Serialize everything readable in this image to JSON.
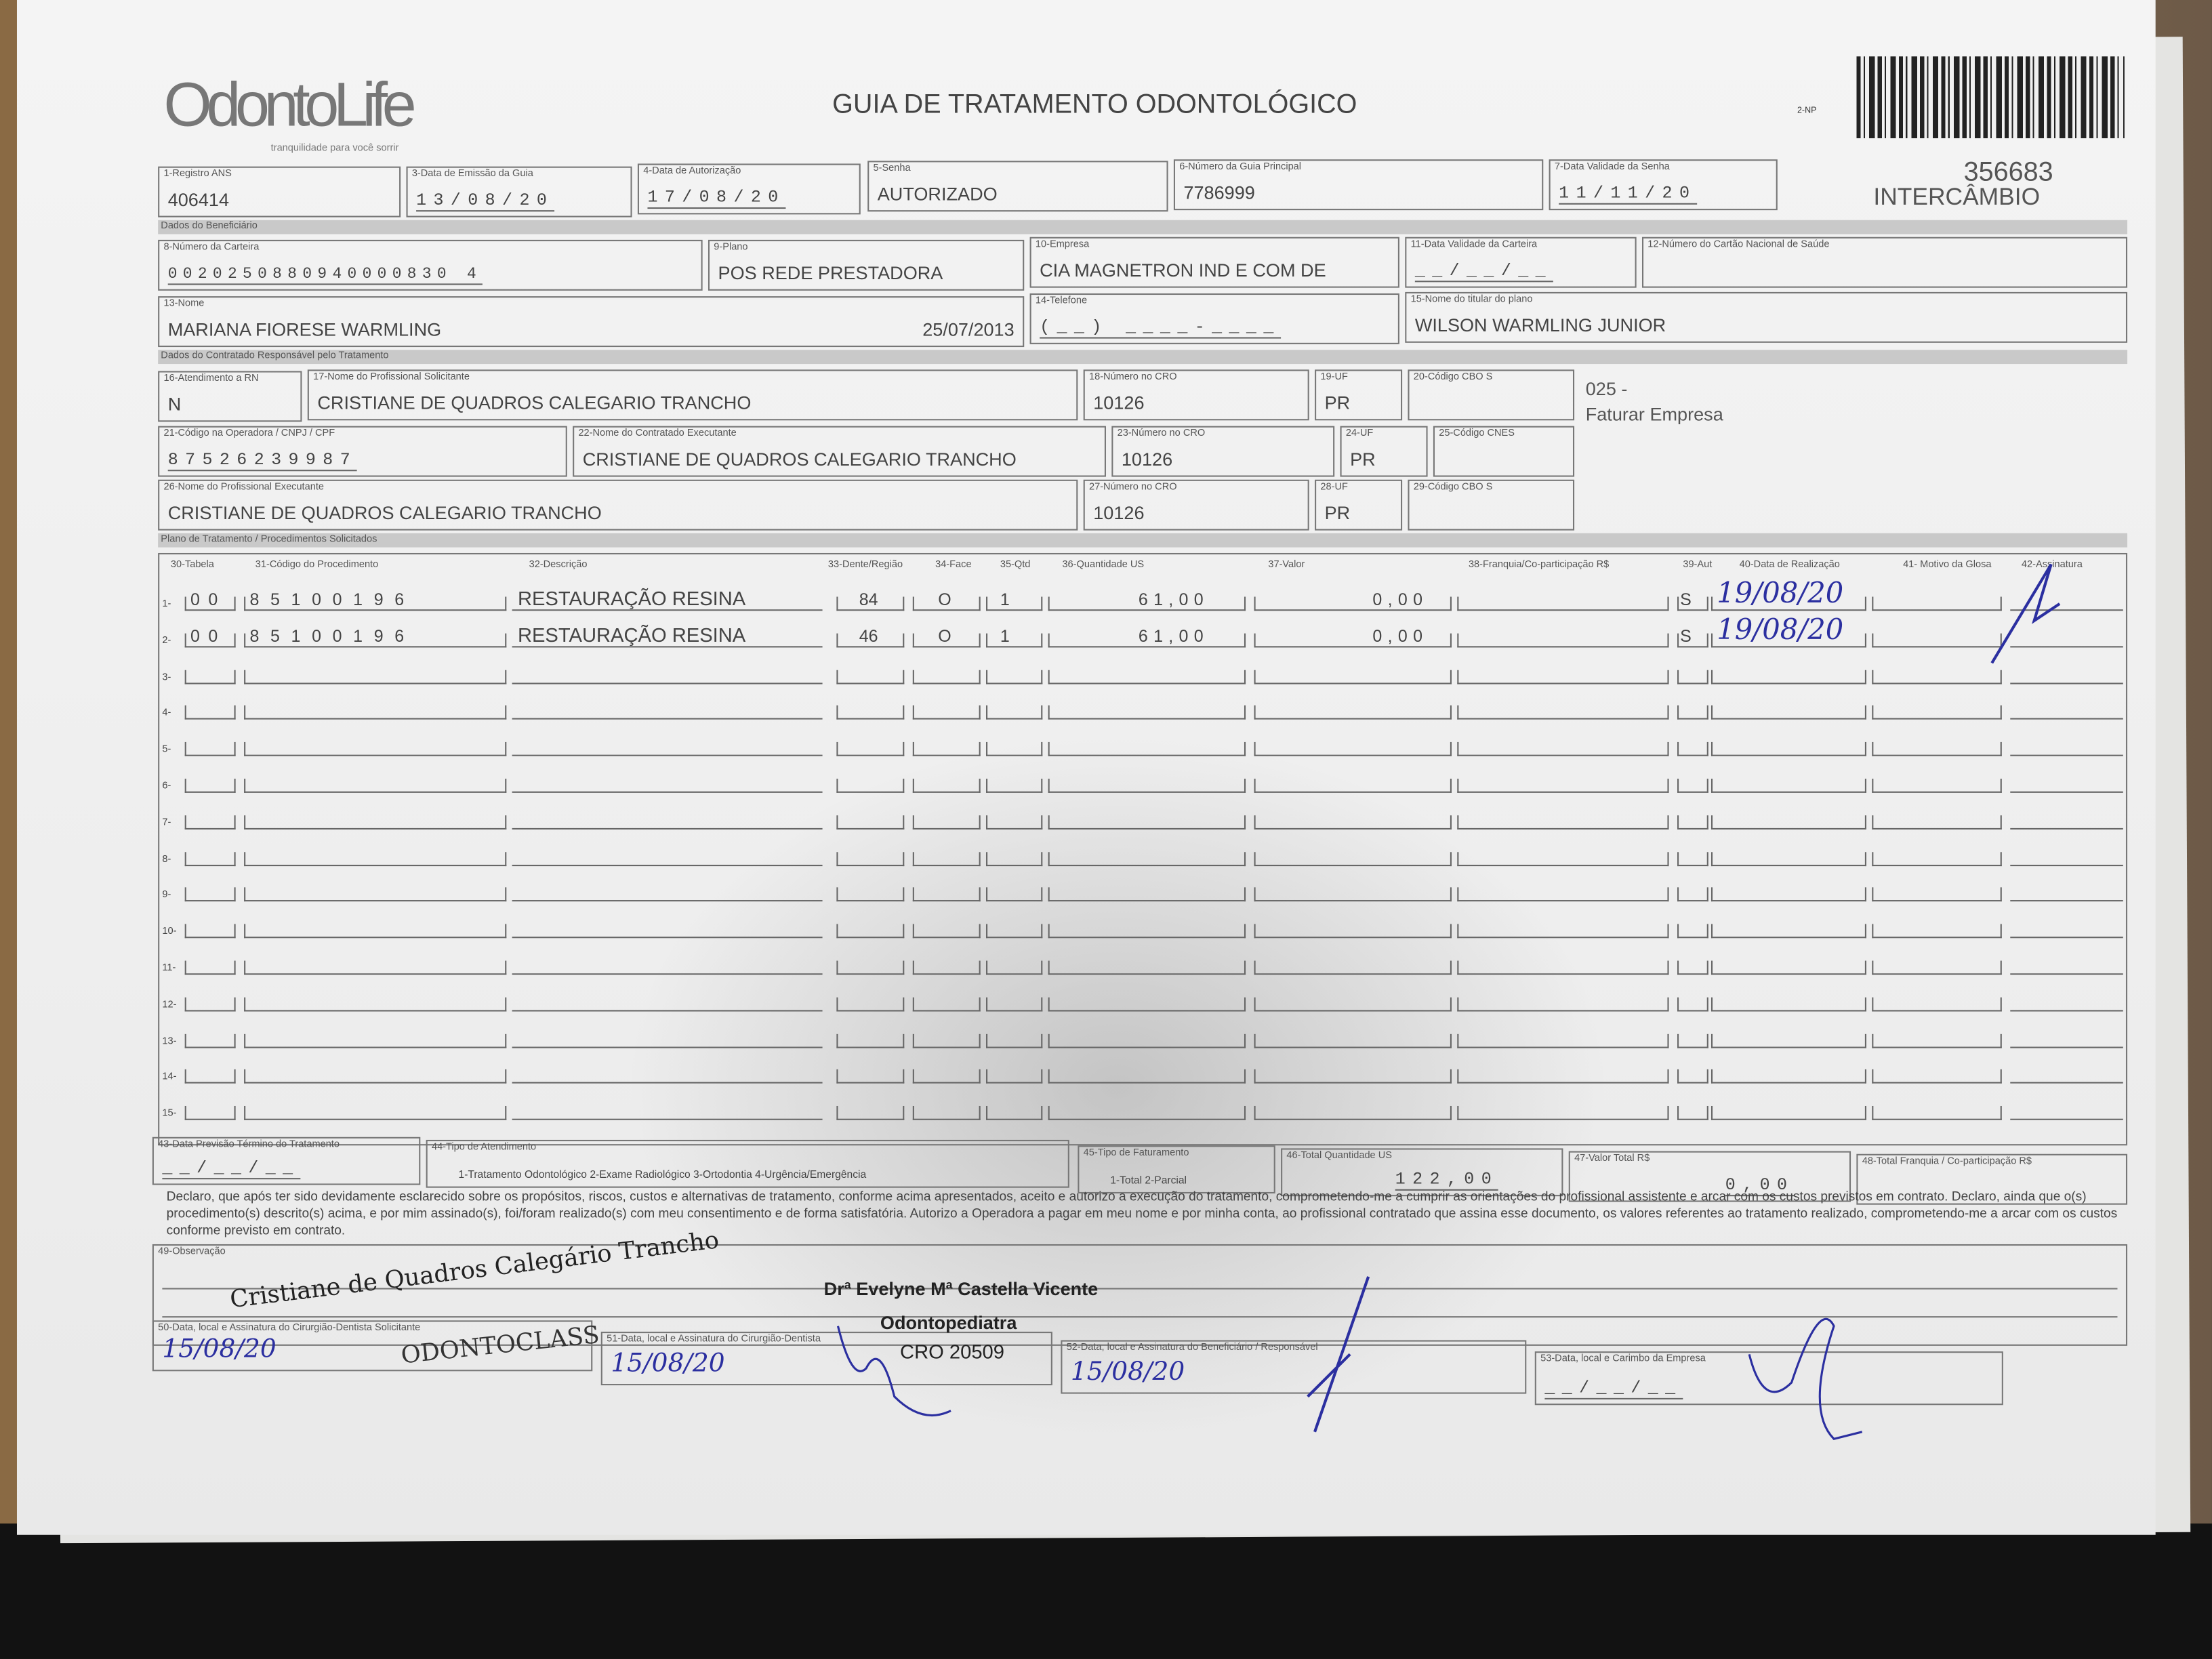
{
  "header": {
    "logo_text": "OdontoLife",
    "logo_tagline": "tranquilidade para você sorrir",
    "title": "GUIA DE TRATAMENTO ODONTOLÓGICO",
    "form_code": "2-NP",
    "guide_number": "356683",
    "type": "INTERCÂMBIO"
  },
  "fields": {
    "registro_ans": {
      "label": "1-Registro ANS",
      "value": "406414"
    },
    "data_emissao": {
      "label": "3-Data de Emissão da Guia",
      "value": "13/08/20"
    },
    "data_autorizacao": {
      "label": "4-Data de Autorização",
      "value": "17/08/20"
    },
    "senha": {
      "label": "5-Senha",
      "value": "AUTORIZADO"
    },
    "guia_principal": {
      "label": "6-Número da Guia Principal",
      "value": "7786999"
    },
    "validade_senha": {
      "label": "7-Data Validade da Senha",
      "value": "11/11/20"
    },
    "carteira": {
      "label": "8-Número da Carteira",
      "value": "0020250880940000830 4"
    },
    "plano": {
      "label": "9-Plano",
      "value": "POS REDE PRESTADORA"
    },
    "empresa": {
      "label": "10-Empresa",
      "value": "CIA MAGNETRON IND E COM DE"
    },
    "validade_carteira": {
      "label": "11-Data Validade da Carteira",
      "value": "__/__/__"
    },
    "cns": {
      "label": "12-Número do Cartão Nacional de Saúde",
      "value": ""
    },
    "nome": {
      "label": "13-Nome",
      "value": "MARIANA FIORESE WARMLING",
      "birth": "25/07/2013"
    },
    "telefone": {
      "label": "14-Telefone",
      "value": "(__) ____-____"
    },
    "titular": {
      "label": "15-Nome do titular do plano",
      "value": "WILSON WARMLING JUNIOR"
    },
    "atendimento_rn": {
      "label": "16-Atendimento a RN",
      "value": "N"
    },
    "prof_solicitante": {
      "label": "17-Nome do Profissional Solicitante",
      "value": "CRISTIANE DE QUADROS CALEGARIO TRANCHO"
    },
    "cro_18": {
      "label": "18-Número no CRO",
      "value": "10126"
    },
    "uf_19": {
      "label": "19-UF",
      "value": "PR"
    },
    "cbo_20": {
      "label": "20-Código CBO S",
      "value": ""
    },
    "codigo_operadora": {
      "label": "21-Código na Operadora / CNPJ / CPF",
      "value": "87526239987"
    },
    "contratado_executante": {
      "label": "22-Nome do Contratado Executante",
      "value": "CRISTIANE DE QUADROS CALEGARIO TRANCHO"
    },
    "cro_23": {
      "label": "23-Número no CRO",
      "value": "10126"
    },
    "uf_24": {
      "label": "24-UF",
      "value": "PR"
    },
    "cnes_25": {
      "label": "25-Código CNES",
      "value": ""
    },
    "prof_executante": {
      "label": "26-Nome do Profissional Executante",
      "value": "CRISTIANE DE QUADROS CALEGARIO TRANCHO"
    },
    "cro_27": {
      "label": "27-Número no CRO",
      "value": "10126"
    },
    "uf_28": {
      "label": "28-UF",
      "value": "PR"
    },
    "cbo_29": {
      "label": "29-Código CBO S",
      "value": ""
    }
  },
  "billing_note": {
    "code": "025 -",
    "text": "Faturar Empresa"
  },
  "sections": {
    "beneficiario": "Dados do Beneficiário",
    "contratado": "Dados do Contratado Responsável pelo Tratamento",
    "plano": "Plano de Tratamento / Procedimentos Solicitados"
  },
  "procedures": {
    "columns": [
      "30-Tabela",
      "31-Código do Procedimento",
      "32-Descrição",
      "33-Dente/Região",
      "34-Face",
      "35-Qtd",
      "36-Quantidade US",
      "37-Valor",
      "38-Franquia/Co-participação R$",
      "39-Aut",
      "40-Data de Realização",
      "41- Motivo da Glosa",
      "42-Assinatura"
    ],
    "rows": [
      {
        "n": "1",
        "tabela": "00",
        "codigo": "85100196",
        "descricao": "RESTAURAÇÃO RESINA",
        "dente": "84",
        "face": "O",
        "qtd": "1",
        "qtd_us": "61,00",
        "valor": "0,00",
        "franquia": "",
        "aut": "S",
        "data": "19/08/20"
      },
      {
        "n": "2",
        "tabela": "00",
        "codigo": "85100196",
        "descricao": "RESTAURAÇÃO RESINA",
        "dente": "46",
        "face": "O",
        "qtd": "1",
        "qtd_us": "61,00",
        "valor": "0,00",
        "franquia": "",
        "aut": "S",
        "data": "19/08/20"
      },
      {
        "n": "3"
      },
      {
        "n": "4"
      },
      {
        "n": "5"
      },
      {
        "n": "6"
      },
      {
        "n": "7"
      },
      {
        "n": "8"
      },
      {
        "n": "9"
      },
      {
        "n": "10"
      },
      {
        "n": "11"
      },
      {
        "n": "12"
      },
      {
        "n": "13"
      },
      {
        "n": "14"
      },
      {
        "n": "15"
      }
    ]
  },
  "totals": {
    "previsao": {
      "label": "43-Data Previsão Término do Tratamento",
      "value": "__/__/__"
    },
    "tipo_atendimento": {
      "label": "44-Tipo de Atendimento",
      "options": "1-Tratamento Odontológico  2-Exame Radiológico  3-Ortodontia  4-Urgência/Emergência"
    },
    "tipo_faturamento": {
      "label": "45-Tipo de Faturamento",
      "options": "1-Total  2-Parcial"
    },
    "total_us": {
      "label": "46-Total Quantidade US",
      "value": "122,00"
    },
    "valor_total": {
      "label": "47-Valor Total R$",
      "value": "0,00"
    },
    "total_franquia": {
      "label": "48-Total Franquia / Co-participação R$",
      "value": ""
    }
  },
  "declaration": "Declaro, que após ter sido devidamente esclarecido sobre os propósitos, riscos, custos e alternativas de tratamento, conforme acima apresentados, aceito e autorizo a execução do tratamento, comprometendo-me a cumprir as orientações do profissional assistente e arcar com os custos previstos em contrato. Declaro, ainda que o(s) procedimento(s) descrito(s) acima, e por mim assinado(s), foi/foram realizado(s) com meu consentimento e de forma satisfatória. Autorizo a Operadora a pagar em meu nome e por minha conta, ao profissional contratado que assina esse documento, os valores referentes ao tratamento realizado, comprometendo-me a arcar com os custos conforme previsto em contrato.",
  "observacao": {
    "label": "49-Observação"
  },
  "signatures": {
    "s50": {
      "label": "50-Data, local e Assinatura do Cirurgião-Dentista Solicitante",
      "date": "15/08/20"
    },
    "s51": {
      "label": "51-Data, local e Assinatura do Cirurgião-Dentista",
      "date": "15/08/20"
    },
    "s52": {
      "label": "52-Data, local e Assinatura do Beneficiário / Responsável",
      "date": "15/08/20"
    },
    "s53": {
      "label": "53-Data, local e Carimbo da Empresa",
      "date": "__/__/__"
    },
    "stamp1_name": "Cristiane de Quadros Calegário Trancho",
    "stamp1_clinic": "ODONTOCLASS",
    "stamp2_name": "Drª Evelyne Mª Castella Vicente",
    "stamp2_title": "Odontopediatra",
    "stamp2_cro": "CRO 20509"
  },
  "colors": {
    "ink": "#2b2fa0",
    "print": "#444444",
    "paper": "#f0f0f0"
  }
}
